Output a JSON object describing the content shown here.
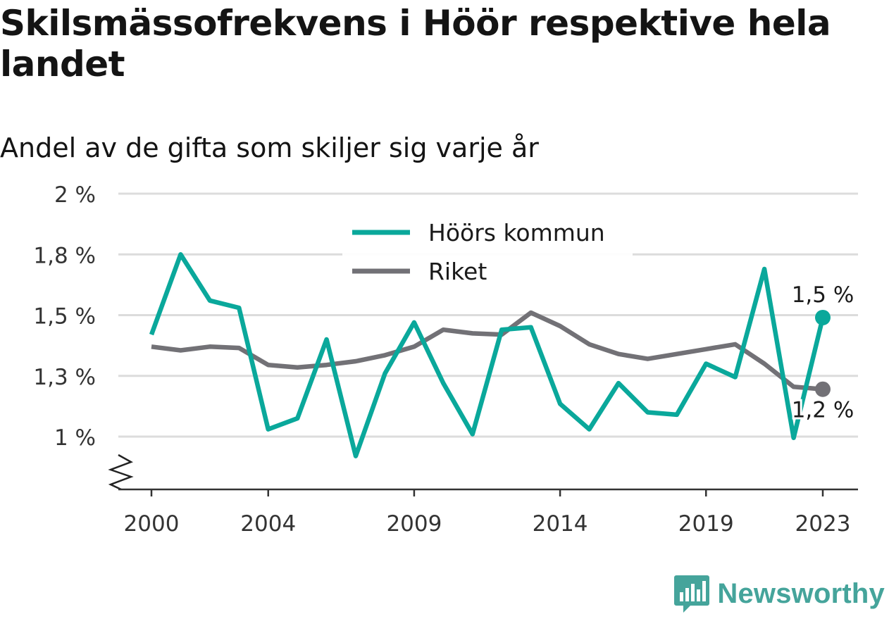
{
  "header": {
    "title": "Skilsmässofrekvens i Höör respektive hela landet",
    "subtitle": "Andel av de gifta som skiljer sig varje år"
  },
  "brand": {
    "name": "Newsworthy",
    "icon": "bar-chart-speech-bubble-icon",
    "color": "#45a49b"
  },
  "chart_data": {
    "type": "line",
    "title": "Skilsmässofrekvens i Höör respektive hela landet",
    "subtitle": "Andel av de gifta som skiljer sig varje år",
    "xlabel": "",
    "ylabel": "",
    "x": [
      2000,
      2001,
      2002,
      2003,
      2004,
      2005,
      2006,
      2007,
      2008,
      2009,
      2010,
      2011,
      2012,
      2013,
      2014,
      2015,
      2016,
      2017,
      2018,
      2019,
      2020,
      2021,
      2022,
      2023
    ],
    "x_ticks": [
      {
        "value": 2000,
        "label": "2000"
      },
      {
        "value": 2004,
        "label": "2004"
      },
      {
        "value": 2009,
        "label": "2009"
      },
      {
        "value": 2014,
        "label": "2014"
      },
      {
        "value": 2019,
        "label": "2019"
      },
      {
        "value": 2023,
        "label": "2023"
      }
    ],
    "y_ticks": [
      {
        "value": 1.0,
        "label": "1 %"
      },
      {
        "value": 1.25,
        "label": "1,3 %"
      },
      {
        "value": 1.5,
        "label": "1,5 %"
      },
      {
        "value": 1.75,
        "label": "1,8 %"
      },
      {
        "value": 2.0,
        "label": "2 %"
      }
    ],
    "ylim": [
      0.775,
      2.0
    ],
    "y_axis_break": true,
    "grid": true,
    "legend_position": "top-center",
    "series": [
      {
        "name": "Höörs kommun",
        "color": "#0aa89b",
        "values": [
          1.42,
          1.75,
          1.56,
          1.53,
          1.03,
          1.075,
          1.4,
          0.92,
          1.26,
          1.47,
          1.22,
          1.01,
          1.44,
          1.45,
          1.135,
          1.03,
          1.22,
          1.1,
          1.09,
          1.3,
          1.245,
          1.69,
          0.995,
          1.49
        ],
        "end_label": "1,5 %"
      },
      {
        "name": "Riket",
        "color": "#727176",
        "values": [
          1.37,
          1.355,
          1.37,
          1.365,
          1.295,
          1.285,
          1.295,
          1.31,
          1.335,
          1.37,
          1.44,
          1.425,
          1.42,
          1.51,
          1.455,
          1.38,
          1.34,
          1.32,
          1.34,
          1.36,
          1.38,
          1.3,
          1.205,
          1.195
        ],
        "end_label": "1,2 %"
      }
    ]
  }
}
